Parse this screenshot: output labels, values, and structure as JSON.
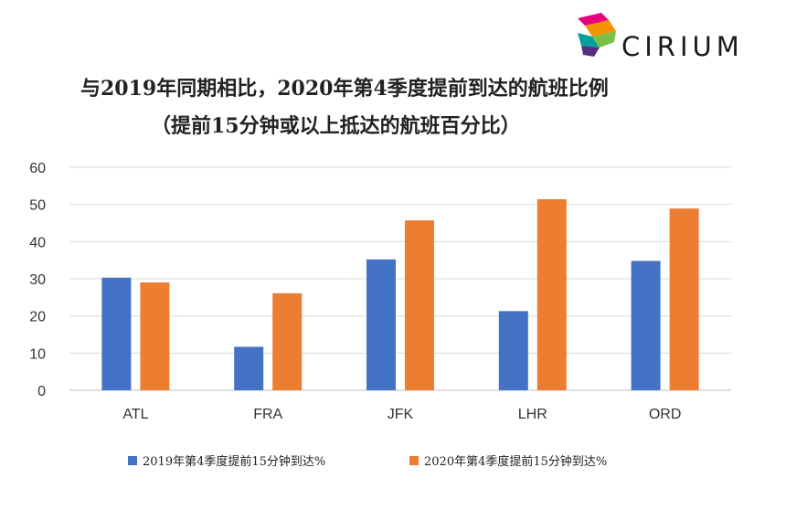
{
  "brand": {
    "name": "CIRIUM",
    "logo_icon": "cirium-logo-icon"
  },
  "chart_data": {
    "type": "bar",
    "title": "与2019年同期相比，2020年第4季度提前到达的航班比例",
    "subtitle": "（提前15分钟或以上抵达的航班百分比）",
    "categories": [
      "ATL",
      "FRA",
      "JFK",
      "LHR",
      "ORD"
    ],
    "series": [
      {
        "name": "2019年第4季度提前15分钟到达%",
        "color": "#4472C4",
        "values": [
          30.3,
          11.7,
          35.2,
          21.3,
          34.8
        ]
      },
      {
        "name": "2020年第4季度提前15分钟到达%",
        "color": "#ED7D31",
        "values": [
          29.0,
          26.1,
          45.7,
          51.4,
          48.9
        ]
      }
    ],
    "ylim": [
      0,
      60
    ],
    "yticks": [
      0,
      10,
      20,
      30,
      40,
      50,
      60
    ],
    "grid": true,
    "legend": "bottom"
  }
}
